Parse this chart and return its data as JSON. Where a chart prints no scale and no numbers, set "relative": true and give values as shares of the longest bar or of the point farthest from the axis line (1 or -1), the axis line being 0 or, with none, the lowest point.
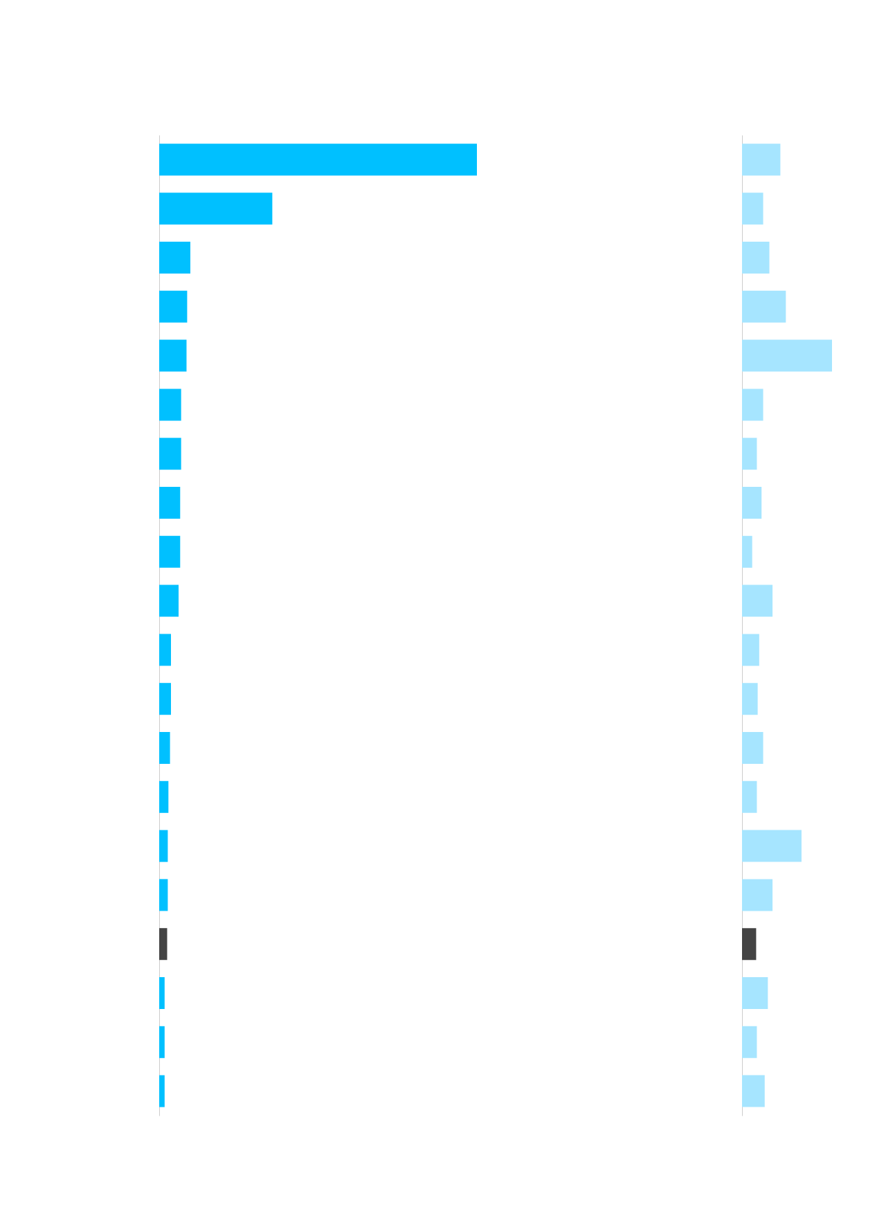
{
  "chart_data": [
    {
      "type": "bar",
      "orientation": "horizontal",
      "relative": true,
      "categories": [
        null,
        null,
        null,
        null,
        null,
        null,
        null,
        null,
        null,
        null,
        null,
        null,
        null,
        null,
        null,
        null,
        null,
        null,
        null,
        null
      ],
      "values": [
        1,
        0.356,
        0.098,
        0.088,
        0.086,
        0.069,
        0.069,
        0.066,
        0.066,
        0.061,
        0.037,
        0.037,
        0.034,
        0.029,
        0.027,
        0.027,
        0.025,
        0.017,
        0.017,
        0.017
      ],
      "colors": [
        "#00c0ff",
        "#00c0ff",
        "#00c0ff",
        "#00c0ff",
        "#00c0ff",
        "#00c0ff",
        "#00c0ff",
        "#00c0ff",
        "#00c0ff",
        "#00c0ff",
        "#00c0ff",
        "#00c0ff",
        "#00c0ff",
        "#00c0ff",
        "#00c0ff",
        "#00c0ff",
        "#444444",
        "#00c0ff",
        "#00c0ff",
        "#00c0ff"
      ]
    },
    {
      "type": "bar",
      "orientation": "horizontal",
      "relative": true,
      "categories": [
        null,
        null,
        null,
        null,
        null,
        null,
        null,
        null,
        null,
        null,
        null,
        null,
        null,
        null,
        null,
        null,
        null,
        null,
        null,
        null
      ],
      "values": [
        0.426,
        0.235,
        0.304,
        0.487,
        1,
        0.235,
        0.165,
        0.217,
        0.113,
        0.339,
        0.191,
        0.174,
        0.235,
        0.165,
        0.661,
        0.339,
        0.157,
        0.287,
        0.165,
        0.252
      ],
      "colors": [
        "#a6e5ff",
        "#a6e5ff",
        "#a6e5ff",
        "#a6e5ff",
        "#a6e5ff",
        "#a6e5ff",
        "#a6e5ff",
        "#a6e5ff",
        "#a6e5ff",
        "#a6e5ff",
        "#a6e5ff",
        "#a6e5ff",
        "#a6e5ff",
        "#a6e5ff",
        "#a6e5ff",
        "#a6e5ff",
        "#444444",
        "#a6e5ff",
        "#a6e5ff",
        "#a6e5ff"
      ]
    }
  ]
}
